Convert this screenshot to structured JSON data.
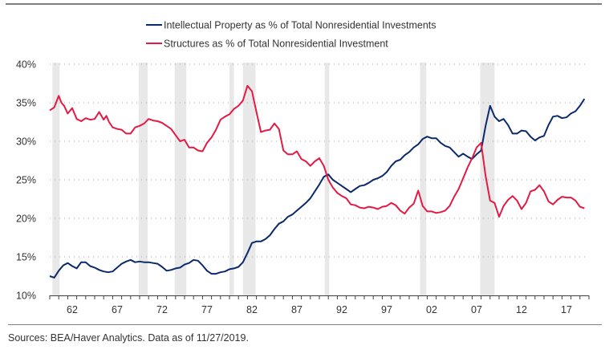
{
  "chart_data": {
    "type": "line",
    "title": "",
    "xlabel": "",
    "ylabel": "",
    "xlim": [
      1960,
      2020
    ],
    "ylim": [
      10,
      40
    ],
    "y_ticks": [
      10,
      15,
      20,
      25,
      30,
      35,
      40
    ],
    "y_tick_labels": [
      "10%",
      "15%",
      "20%",
      "25%",
      "30%",
      "35%",
      "40%"
    ],
    "x_tick_labels": [
      {
        "year": 1962,
        "label": "62"
      },
      {
        "year": 1967,
        "label": "67"
      },
      {
        "year": 1972,
        "label": "72"
      },
      {
        "year": 1977,
        "label": "77"
      },
      {
        "year": 1982,
        "label": "82"
      },
      {
        "year": 1987,
        "label": "87"
      },
      {
        "year": 1992,
        "label": "92"
      },
      {
        "year": 1997,
        "label": "97"
      },
      {
        "year": 2002,
        "label": "02"
      },
      {
        "year": 2007,
        "label": "07"
      },
      {
        "year": 2012,
        "label": "12"
      },
      {
        "year": 2017,
        "label": "17"
      }
    ],
    "grid": "horizontal dotted",
    "legend_position": "top-center",
    "recessions": [
      [
        1960.3,
        1961.1
      ],
      [
        1969.9,
        1970.9
      ],
      [
        1973.9,
        1975.2
      ],
      [
        1980.0,
        1980.5
      ],
      [
        1981.5,
        1982.9
      ],
      [
        1990.6,
        1991.1
      ],
      [
        2001.2,
        2001.9
      ],
      [
        2007.9,
        2009.5
      ]
    ],
    "series": [
      {
        "name": "Intellectual Property as % of Total Nonresidential Investments",
        "color": "#0b2a6b",
        "x": [
          1960,
          1960.5,
          1961,
          1961.5,
          1962,
          1962.5,
          1963,
          1963.5,
          1964,
          1964.5,
          1965,
          1965.5,
          1966,
          1966.5,
          1967,
          1967.5,
          1968,
          1968.5,
          1969,
          1969.5,
          1970,
          1970.5,
          1971,
          1971.5,
          1972,
          1972.5,
          1973,
          1973.5,
          1974,
          1974.5,
          1975,
          1975.5,
          1976,
          1976.5,
          1977,
          1977.5,
          1978,
          1978.5,
          1979,
          1979.5,
          1980,
          1980.5,
          1981,
          1981.5,
          1982,
          1982.5,
          1983,
          1983.5,
          1984,
          1984.5,
          1985,
          1985.5,
          1986,
          1986.5,
          1987,
          1987.5,
          1988,
          1988.5,
          1989,
          1989.5,
          1990,
          1990.5,
          1991,
          1991.5,
          1992,
          1992.5,
          1993,
          1993.5,
          1994,
          1994.5,
          1995,
          1995.5,
          1996,
          1996.5,
          1997,
          1997.5,
          1998,
          1998.5,
          1999,
          1999.5,
          2000,
          2000.5,
          2001,
          2001.5,
          2002,
          2002.5,
          2003,
          2003.5,
          2004,
          2004.5,
          2005,
          2005.5,
          2006,
          2006.5,
          2007,
          2007.5,
          2008,
          2008.5,
          2009,
          2009.5,
          2010,
          2010.5,
          2011,
          2011.5,
          2012,
          2012.5,
          2013,
          2013.5,
          2014,
          2014.5,
          2015,
          2015.5,
          2016,
          2016.5,
          2017,
          2017.5,
          2018,
          2018.5,
          2019,
          2019.5
        ],
        "values": [
          12.5,
          12.3,
          13.2,
          13.9,
          14.2,
          13.8,
          13.5,
          14.3,
          14.3,
          13.8,
          13.6,
          13.3,
          13.1,
          13.0,
          13.1,
          13.6,
          14.1,
          14.4,
          14.6,
          14.3,
          14.4,
          14.3,
          14.3,
          14.2,
          14.1,
          13.7,
          13.2,
          13.3,
          13.5,
          13.6,
          14.0,
          14.2,
          14.6,
          14.5,
          13.9,
          13.2,
          12.8,
          12.8,
          13.0,
          13.1,
          13.4,
          13.5,
          13.7,
          14.3,
          15.5,
          16.8,
          17.0,
          17.0,
          17.3,
          17.8,
          18.6,
          19.3,
          19.6,
          20.2,
          20.5,
          21.0,
          21.5,
          22.0,
          22.6,
          23.5,
          24.4,
          25.4,
          25.7,
          25.0,
          24.6,
          24.2,
          23.8,
          23.4,
          23.8,
          24.2,
          24.3,
          24.6,
          25.0,
          25.2,
          25.5,
          26.0,
          26.8,
          27.4,
          27.6,
          28.2,
          28.6,
          29.2,
          29.6,
          30.3,
          30.6,
          30.4,
          30.4,
          29.8,
          29.4,
          29.2,
          28.6,
          28.0,
          28.4,
          28.0,
          27.7,
          28.3,
          28.8,
          32.0,
          34.6,
          33.2,
          32.6,
          32.9,
          32.1,
          31.0,
          31.0,
          31.4,
          31.3,
          30.6,
          30.1,
          30.5,
          30.7,
          32.1,
          33.2,
          33.3,
          33.0,
          33.1,
          33.6,
          33.9,
          34.6,
          35.5
        ]
      },
      {
        "name": "Structures as % of Total Nonresidential Investment",
        "color": "#e31b44",
        "x": [
          1960,
          1960.5,
          1961,
          1961.3,
          1961.6,
          1962,
          1962.5,
          1963,
          1963.5,
          1964,
          1964.5,
          1965,
          1965.5,
          1966,
          1966.3,
          1966.6,
          1967,
          1967.5,
          1968,
          1968.5,
          1969,
          1969.5,
          1970,
          1970.5,
          1971,
          1971.5,
          1972,
          1972.5,
          1973,
          1973.5,
          1974,
          1974.5,
          1975,
          1975.5,
          1976,
          1976.5,
          1977,
          1977.5,
          1978,
          1978.5,
          1979,
          1979.5,
          1980,
          1980.5,
          1981,
          1981.5,
          1982,
          1982.5,
          1983,
          1983.5,
          1984,
          1984.5,
          1985,
          1985.5,
          1986,
          1986.5,
          1987,
          1987.5,
          1988,
          1988.5,
          1989,
          1989.5,
          1990,
          1990.5,
          1991,
          1991.5,
          1992,
          1992.5,
          1993,
          1993.5,
          1994,
          1994.5,
          1995,
          1995.5,
          1996,
          1996.5,
          1997,
          1997.5,
          1998,
          1998.5,
          1999,
          1999.5,
          2000,
          2000.5,
          2001,
          2001.5,
          2002,
          2002.5,
          2003,
          2003.5,
          2004,
          2004.5,
          2005,
          2005.5,
          2006,
          2006.5,
          2007,
          2007.5,
          2008,
          2008.5,
          2009,
          2009.5,
          2010,
          2010.5,
          2011,
          2011.5,
          2012,
          2012.5,
          2013,
          2013.5,
          2014,
          2014.5,
          2015,
          2015.5,
          2016,
          2016.5,
          2017,
          2017.5,
          2018,
          2018.5,
          2019,
          2019.5
        ],
        "values": [
          34.0,
          34.4,
          35.9,
          35.0,
          34.6,
          33.6,
          34.3,
          32.9,
          32.6,
          33.0,
          32.8,
          32.9,
          33.8,
          32.8,
          33.3,
          32.5,
          31.8,
          31.6,
          31.5,
          31.0,
          31.0,
          31.8,
          32.0,
          32.3,
          32.9,
          32.7,
          32.6,
          32.4,
          32.0,
          31.6,
          30.8,
          30.0,
          30.2,
          29.2,
          29.2,
          28.8,
          28.7,
          29.8,
          30.5,
          31.5,
          32.8,
          33.2,
          33.5,
          34.2,
          34.6,
          35.3,
          37.2,
          36.5,
          33.8,
          31.2,
          31.4,
          31.5,
          32.3,
          31.6,
          28.8,
          28.3,
          28.3,
          28.7,
          27.7,
          27.4,
          26.8,
          27.4,
          27.8,
          26.8,
          25.0,
          24.0,
          23.3,
          22.9,
          22.6,
          21.8,
          21.7,
          21.4,
          21.3,
          21.5,
          21.4,
          21.2,
          21.5,
          21.6,
          22.0,
          21.7,
          21.0,
          20.6,
          21.4,
          21.9,
          23.6,
          21.6,
          20.9,
          20.9,
          20.7,
          20.8,
          21.0,
          21.6,
          22.8,
          23.8,
          25.2,
          26.6,
          27.8,
          29.2,
          29.8,
          25.5,
          22.3,
          22.0,
          20.2,
          21.6,
          22.4,
          22.9,
          22.3,
          21.2,
          22.0,
          23.5,
          23.7,
          24.3,
          23.5,
          22.2,
          21.8,
          22.4,
          22.8,
          22.7,
          22.7,
          22.3,
          21.5,
          21.3
        ]
      }
    ]
  },
  "source": "Sources: BEA/Haver Analytics. Data as of 11/27/2019."
}
